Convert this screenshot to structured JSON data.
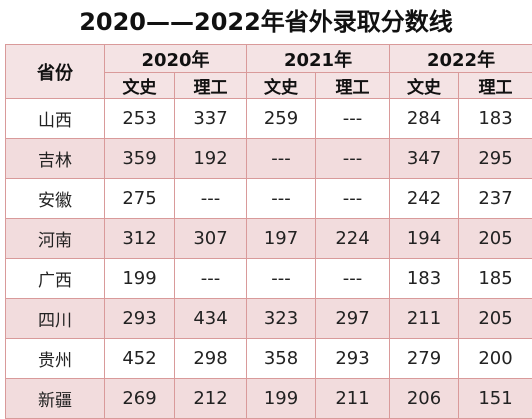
{
  "title": "2020——2022年省外录取分数线",
  "header": {
    "province": "省份",
    "years": [
      "2020年",
      "2021年",
      "2022年"
    ],
    "subjects": [
      "文史",
      "理工",
      "文史",
      "理工",
      "文史",
      "理工"
    ]
  },
  "rows": [
    {
      "province": "山西",
      "values": [
        "253",
        "337",
        "259",
        "---",
        "284",
        "183"
      ]
    },
    {
      "province": "吉林",
      "values": [
        "359",
        "192",
        "---",
        "---",
        "347",
        "295"
      ]
    },
    {
      "province": "安徽",
      "values": [
        "275",
        "---",
        "---",
        "---",
        "242",
        "237"
      ]
    },
    {
      "province": "河南",
      "values": [
        "312",
        "307",
        "197",
        "224",
        "194",
        "205"
      ]
    },
    {
      "province": "广西",
      "values": [
        "199",
        "---",
        "---",
        "---",
        "183",
        "185"
      ]
    },
    {
      "province": "四川",
      "values": [
        "293",
        "434",
        "323",
        "297",
        "211",
        "205"
      ]
    },
    {
      "province": "贵州",
      "values": [
        "452",
        "298",
        "358",
        "293",
        "279",
        "200"
      ]
    },
    {
      "province": "新疆",
      "values": [
        "269",
        "212",
        "199",
        "211",
        "206",
        "151"
      ]
    }
  ]
}
